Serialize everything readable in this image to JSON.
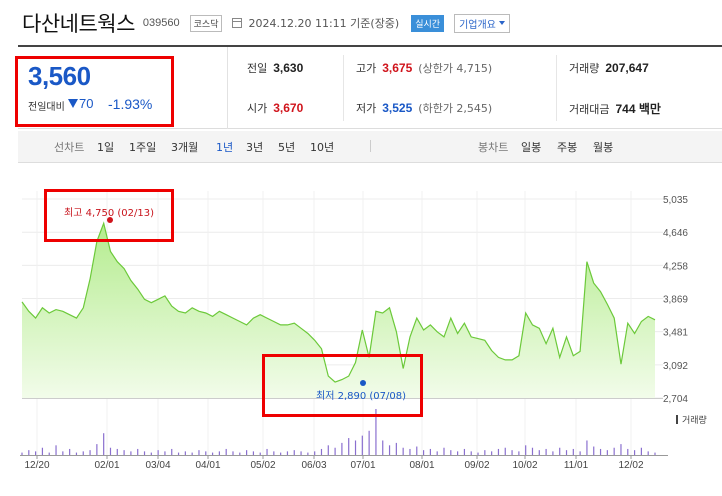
{
  "header": {
    "company": "다산네트웍스",
    "code": "039560",
    "market": "코스닥",
    "datetime": "2024.12.20 11:11 기준(장중)",
    "realtime": "실시간",
    "company_info": "기업개요"
  },
  "price": {
    "current": "3,560",
    "change_label": "전일대비",
    "change": "70",
    "rate": "-1.93%"
  },
  "stats": {
    "prev_close_label": "전일",
    "prev_close": "3,630",
    "high_label": "고가",
    "high": "3,675",
    "upper_limit": "(상한가 4,715)",
    "volume_label": "거래량",
    "volume": "207,647",
    "open_label": "시가",
    "open": "3,670",
    "low_label": "저가",
    "low": "3,525",
    "lower_limit": "(하한가 2,545)",
    "amount_label": "거래대금",
    "amount": "744 백만"
  },
  "tabs": {
    "line_label": "선차트",
    "line": [
      "1일",
      "1주일",
      "3개월",
      "1년",
      "3년",
      "5년",
      "10년"
    ],
    "active": "1년",
    "candle_label": "봉차트",
    "candle": [
      "일봉",
      "주봉",
      "월봉"
    ]
  },
  "annotations": {
    "high": "최고 4,750 (02/13)",
    "low": "최저 2,890 (07/08)"
  },
  "chart_data": {
    "type": "area",
    "y_ticks": [
      "5,035",
      "4,646",
      "4,258",
      "3,869",
      "3,481",
      "3,092",
      "2,704"
    ],
    "x_ticks": [
      "12/20",
      "02/01",
      "03/04",
      "04/01",
      "05/02",
      "06/03",
      "07/01",
      "08/01",
      "09/02",
      "10/02",
      "11/01",
      "12/02"
    ],
    "volume_label": "거래량",
    "ylim": [
      2704,
      5035
    ],
    "price": [
      3830,
      3720,
      3640,
      3760,
      3700,
      3740,
      3720,
      3680,
      3640,
      3760,
      4100,
      4540,
      4750,
      4420,
      4300,
      4220,
      4080,
      3980,
      3860,
      3820,
      3860,
      3900,
      3780,
      3720,
      3700,
      3760,
      3720,
      3700,
      3660,
      3720,
      3680,
      3640,
      3600,
      3560,
      3640,
      3680,
      3640,
      3600,
      3560,
      3560,
      3580,
      3520,
      3460,
      3380,
      3280,
      2960,
      2890,
      2920,
      2960,
      3120,
      3500,
      3180,
      3720,
      3700,
      3760,
      3480,
      3050,
      3420,
      3640,
      3500,
      3560,
      3480,
      3420,
      3640,
      3460,
      3580,
      3420,
      3400,
      3380,
      3260,
      3180,
      3150,
      3150,
      3200,
      3700,
      3560,
      3520,
      3340,
      3520,
      3180,
      3420,
      3200,
      3250,
      4300,
      4050,
      3950,
      3800,
      3640,
      3100,
      3580,
      3460,
      3600,
      3660,
      3620
    ],
    "volume": [
      2,
      4,
      3,
      6,
      2,
      8,
      3,
      5,
      2,
      3,
      4,
      9,
      18,
      6,
      5,
      4,
      3,
      5,
      3,
      2,
      4,
      3,
      5,
      2,
      3,
      2,
      4,
      3,
      2,
      3,
      5,
      3,
      2,
      4,
      3,
      2,
      5,
      3,
      2,
      3,
      4,
      3,
      2,
      3,
      5,
      8,
      6,
      10,
      14,
      12,
      16,
      20,
      38,
      12,
      8,
      10,
      6,
      5,
      7,
      4,
      5,
      3,
      6,
      4,
      3,
      5,
      3,
      2,
      4,
      3,
      5,
      6,
      4,
      3,
      8,
      6,
      4,
      5,
      3,
      6,
      4,
      5,
      3,
      12,
      7,
      5,
      4,
      6,
      9,
      5,
      4,
      6,
      3,
      2
    ]
  }
}
